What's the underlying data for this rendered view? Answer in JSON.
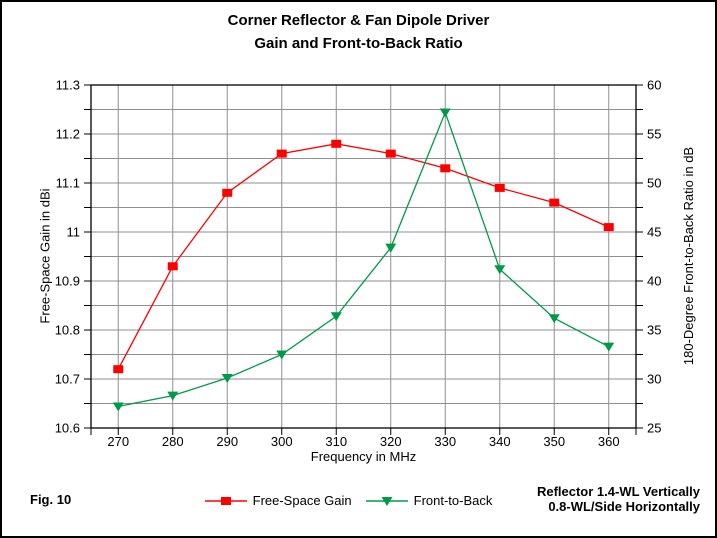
{
  "window": {
    "title_line1": "Corner Reflector & Fan Dipole Driver",
    "title_line2": "Gain and Front-to-Back Ratio"
  },
  "footer": {
    "fig_label": "Fig. 10",
    "note_line1": "Reflector 1.4-WL Vertically",
    "note_line2": "0.8-WL/Side Horizontally"
  },
  "colors": {
    "background": "#ffffff",
    "grid": "#8f8f8f",
    "axis": "#000000",
    "gain_series": "#ff0000",
    "front_to_back_series": "#009a48"
  },
  "chart_data": {
    "type": "line",
    "title": "Corner Reflector & Fan Dipole Driver Gain and Front-to-Back Ratio",
    "xlabel": "Frequency in MHz",
    "ylabel_left": "Free-Space Gain in dBi",
    "ylabel_right": "180-Degree Front-to-Back Ratio in dB",
    "x": [
      270,
      280,
      290,
      300,
      310,
      320,
      330,
      340,
      350,
      360
    ],
    "x_tick_labels": [
      "270",
      "280",
      "290",
      "300",
      "310",
      "320",
      "330",
      "340",
      "350",
      "360"
    ],
    "left_axis": {
      "min": 10.6,
      "max": 11.3,
      "major_step": 0.1,
      "minor_step": 0.05,
      "tick_labels": [
        "11.3",
        "11.2",
        "11.1",
        "11",
        "10.9",
        "10.8",
        "10.7",
        "10.6"
      ]
    },
    "right_axis": {
      "min": 25,
      "max": 60,
      "major_step": 5,
      "minor_step": 2.5,
      "tick_labels": [
        "60",
        "55",
        "50",
        "45",
        "40",
        "35",
        "30",
        "25"
      ]
    },
    "grid": {
      "horizontal_step_in_right_axis_units": 2.5,
      "vertical": "every 10 MHz",
      "on": true
    },
    "legend_position": "bottom-center",
    "series": [
      {
        "name": "Free-Space Gain",
        "axis": "left",
        "marker": "square",
        "color": "#ff0000",
        "values": [
          10.72,
          10.93,
          11.08,
          11.16,
          11.18,
          11.16,
          11.13,
          11.09,
          11.06,
          11.01
        ]
      },
      {
        "name": "Front-to-Back",
        "axis": "right",
        "marker": "triangle-down",
        "color": "#009a48",
        "values": [
          27.2,
          28.3,
          30.1,
          32.5,
          36.4,
          43.4,
          57.2,
          41.2,
          36.2,
          33.3
        ]
      }
    ]
  }
}
